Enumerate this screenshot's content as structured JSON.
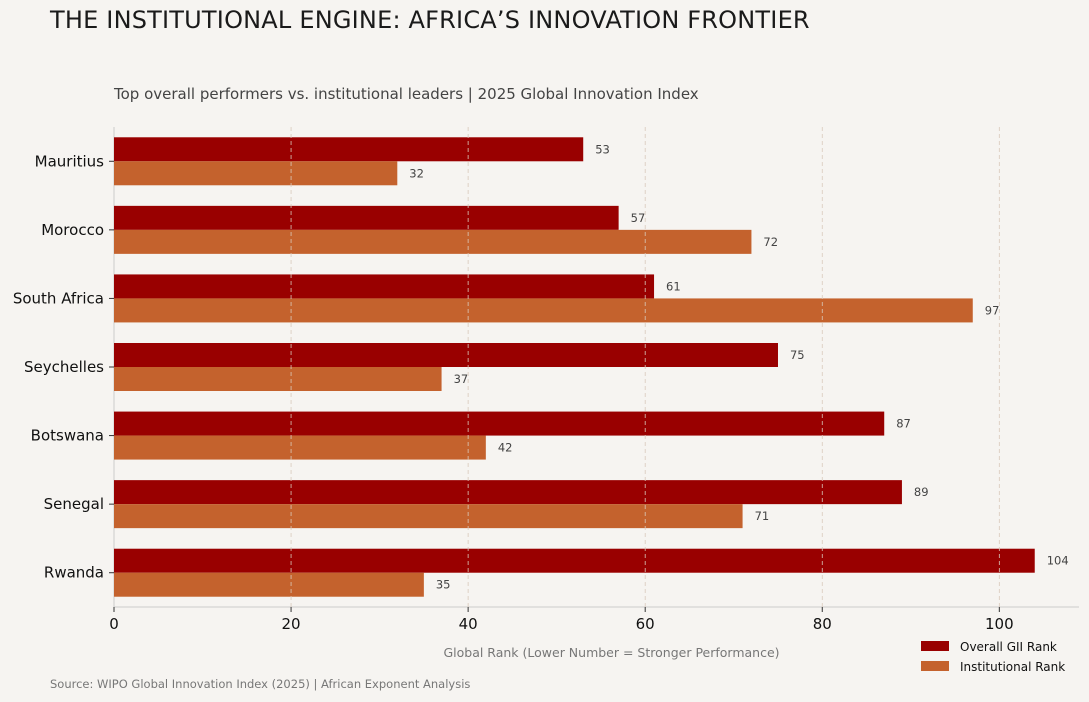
{
  "title": "THE INSTITUTIONAL ENGINE: AFRICA’S INNOVATION FRONTIER",
  "subtitle": "Top overall performers vs. institutional leaders | 2025 Global Innovation Index",
  "source": "Source: WIPO Global Innovation Index (2025) | African Exponent Analysis",
  "chart_data": {
    "type": "bar",
    "orientation": "horizontal",
    "categories": [
      "Mauritius",
      "Morocco",
      "South Africa",
      "Seychelles",
      "Botswana",
      "Senegal",
      "Rwanda"
    ],
    "series": [
      {
        "name": "Overall GII Rank",
        "values": [
          53,
          57,
          61,
          75,
          87,
          89,
          104
        ],
        "color": "#990000"
      },
      {
        "name": "Institutional Rank",
        "values": [
          32,
          72,
          97,
          37,
          42,
          71,
          35
        ],
        "color": "#c4622d"
      }
    ],
    "xlabel": "Global Rank (Lower Number = Stronger Performance)",
    "xlim": [
      0,
      109
    ],
    "xticks": [
      0,
      20,
      40,
      60,
      80,
      100
    ],
    "grid": true,
    "legend_position": "bottom-right"
  }
}
